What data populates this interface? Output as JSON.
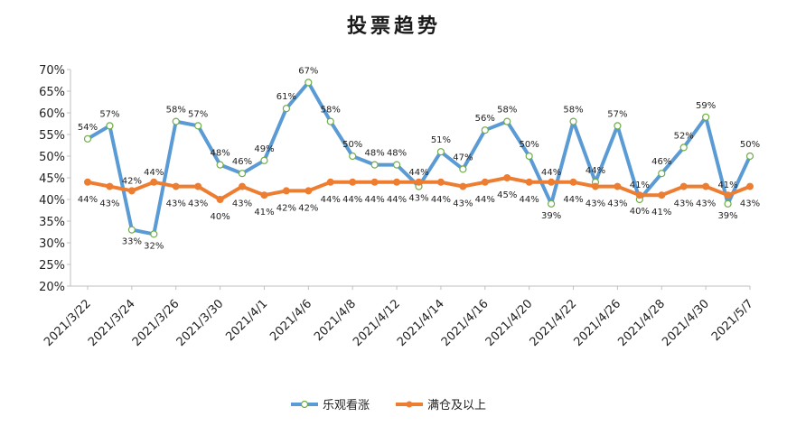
{
  "chart_data": {
    "type": "line",
    "title": "投票趋势",
    "xlabel": "",
    "ylabel": "",
    "ylim": [
      20,
      70
    ],
    "yticks": [
      "20%",
      "25%",
      "30%",
      "35%",
      "40%",
      "45%",
      "50%",
      "55%",
      "60%",
      "65%",
      "70%"
    ],
    "grid": false,
    "legend_position": "bottom",
    "x_tick_labels": [
      "2021/3/22",
      "2021/3/24",
      "2021/3/26",
      "2021/3/30",
      "2021/4/1",
      "2021/4/6",
      "2021/4/8",
      "2021/4/12",
      "2021/4/14",
      "2021/4/16",
      "2021/4/20",
      "2021/4/22",
      "2021/4/26",
      "2021/4/28",
      "2021/4/30",
      "2021/5/7"
    ],
    "series": [
      {
        "name": "乐观看涨",
        "color": "#5b9bd5",
        "values": [
          54,
          57,
          33,
          32,
          58,
          57,
          48,
          46,
          49,
          61,
          67,
          58,
          50,
          48,
          48,
          43,
          51,
          47,
          56,
          58,
          50,
          39,
          58,
          44,
          57,
          40,
          46,
          52,
          59,
          39,
          50
        ],
        "labels": [
          "54%",
          "57%",
          "33%",
          "32%",
          "58%",
          "57%",
          "48%",
          "46%",
          "49%",
          "61%",
          "67%",
          "58%",
          "50%",
          "48%",
          "48%",
          "43%",
          "51%",
          "47%",
          "56%",
          "58%",
          "50%",
          "39%",
          "58%",
          "44%",
          "57%",
          "40%",
          "46%",
          "52%",
          "59%",
          "39%",
          "50%"
        ]
      },
      {
        "name": "满仓及以上",
        "color": "#ed7d31",
        "values": [
          44,
          43,
          42,
          44,
          43,
          43,
          40,
          43,
          41,
          42,
          42,
          44,
          44,
          44,
          44,
          44,
          44,
          43,
          44,
          45,
          44,
          44,
          44,
          43,
          43,
          41,
          41,
          43,
          43,
          41,
          43
        ],
        "labels": [
          "44%",
          "43%",
          "42%",
          "44%",
          "43%",
          "43%",
          "40%",
          "43%",
          "41%",
          "42%",
          "42%",
          "44%",
          "44%",
          "44%",
          "44%",
          "44%",
          "44%",
          "43%",
          "44%",
          "45%",
          "44%",
          "44%",
          "44%",
          "43%",
          "43%",
          "41%",
          "41%",
          "43%",
          "43%",
          "41%",
          "43%"
        ]
      }
    ]
  }
}
